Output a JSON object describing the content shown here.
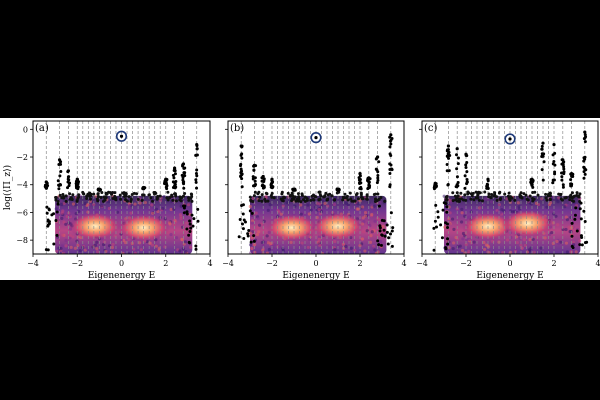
{
  "figure": {
    "background": "#ffffff",
    "page_background": "#000000"
  },
  "chart_data": [
    {
      "type": "scatter",
      "panel_label": "(a)",
      "xlabel": "Eigenenergy E",
      "ylabel": "log(⟨Π_z⟩)",
      "xlim": [
        -4,
        4
      ],
      "ylim": [
        -9,
        0.6
      ],
      "xticks": [
        "−4",
        "−2",
        "0",
        "2",
        "4"
      ],
      "yticks": [
        "0",
        "−2",
        "−4",
        "−6",
        "−8"
      ],
      "dense_region": {
        "x_range": [
          -3.0,
          3.2
        ],
        "y_range": [
          -9,
          -4.8
        ],
        "hot_centers": [
          [
            -1.2,
            -7.0
          ],
          [
            1.0,
            -7.1
          ]
        ]
      },
      "highlighted_point": {
        "x": 0.0,
        "y": -0.5
      },
      "vertical_dashed_lines_x": [
        -3.4,
        -2.8,
        -2.4,
        -2.0,
        -1.75,
        -1.5,
        -1.25,
        -1.0,
        -0.75,
        -0.5,
        -0.25,
        0.0,
        0.25,
        0.5,
        0.75,
        1.0,
        1.25,
        1.5,
        1.75,
        2.0,
        2.4,
        2.8,
        3.4
      ],
      "outlier_columns": [
        {
          "x": -3.4,
          "y_top": -3.8
        },
        {
          "x": -2.8,
          "y_top": -2.2
        },
        {
          "x": -2.4,
          "y_top": -3.0
        },
        {
          "x": -2.0,
          "y_top": -3.6
        },
        {
          "x": -1.0,
          "y_top": -4.4
        },
        {
          "x": 1.0,
          "y_top": -4.2
        },
        {
          "x": 2.0,
          "y_top": -3.6
        },
        {
          "x": 2.4,
          "y_top": -2.8
        },
        {
          "x": 2.8,
          "y_top": -2.5
        },
        {
          "x": 3.4,
          "y_top": -1.1
        }
      ]
    },
    {
      "type": "scatter",
      "panel_label": "(b)",
      "xlabel": "Eigenenergy E",
      "ylabel": "",
      "xlim": [
        -4,
        4
      ],
      "ylim": [
        -9,
        0.6
      ],
      "xticks": [
        "−4",
        "−2",
        "0",
        "2",
        "4"
      ],
      "dense_region": {
        "x_range": [
          -3.0,
          3.2
        ],
        "y_range": [
          -9,
          -4.8
        ],
        "hot_centers": [
          [
            -1.1,
            -7.1
          ],
          [
            1.0,
            -7.0
          ]
        ]
      },
      "highlighted_point": {
        "x": 0.0,
        "y": -0.6
      },
      "vertical_dashed_lines_x": [
        -3.4,
        -2.8,
        -2.4,
        -2.0,
        -1.75,
        -1.5,
        -1.25,
        -1.0,
        -0.75,
        -0.5,
        -0.25,
        0.0,
        0.25,
        0.5,
        0.75,
        1.0,
        1.25,
        1.5,
        1.75,
        2.0,
        2.4,
        2.8,
        3.4
      ],
      "outlier_columns": [
        {
          "x": -3.4,
          "y_top": -1.2
        },
        {
          "x": -2.8,
          "y_top": -2.6
        },
        {
          "x": -2.4,
          "y_top": -3.4
        },
        {
          "x": -2.0,
          "y_top": -3.6
        },
        {
          "x": -1.0,
          "y_top": -4.4
        },
        {
          "x": 1.0,
          "y_top": -4.4
        },
        {
          "x": 2.0,
          "y_top": -3.2
        },
        {
          "x": 2.4,
          "y_top": -3.5
        },
        {
          "x": 2.8,
          "y_top": -2.0
        },
        {
          "x": 3.4,
          "y_top": -0.4
        }
      ]
    },
    {
      "type": "scatter",
      "panel_label": "(c)",
      "xlabel": "Eigenenergy E",
      "ylabel": "",
      "xlim": [
        -4,
        4
      ],
      "ylim": [
        -9,
        0.6
      ],
      "xticks": [
        "−4",
        "−2",
        "0",
        "2",
        "4"
      ],
      "dense_region": {
        "x_range": [
          -3.0,
          3.2
        ],
        "y_range": [
          -9,
          -4.8
        ],
        "hot_centers": [
          [
            -1.0,
            -7.0
          ],
          [
            0.8,
            -6.8
          ]
        ]
      },
      "highlighted_point": {
        "x": 0.0,
        "y": -0.7
      },
      "vertical_dashed_lines_x": [
        -3.4,
        -2.8,
        -2.4,
        -2.0,
        -1.75,
        -1.5,
        -1.25,
        -1.0,
        -0.75,
        -0.5,
        -0.25,
        0.0,
        0.25,
        0.5,
        0.75,
        1.0,
        1.25,
        1.5,
        1.75,
        2.0,
        2.4,
        2.8,
        3.4
      ],
      "outlier_columns": [
        {
          "x": -3.4,
          "y_top": -3.9
        },
        {
          "x": -2.8,
          "y_top": -1.2
        },
        {
          "x": -2.4,
          "y_top": -1.4
        },
        {
          "x": -2.0,
          "y_top": -1.8
        },
        {
          "x": -1.0,
          "y_top": -3.6
        },
        {
          "x": 1.0,
          "y_top": -3.6
        },
        {
          "x": 1.5,
          "y_top": -1.0
        },
        {
          "x": 2.0,
          "y_top": -1.1
        },
        {
          "x": 2.4,
          "y_top": -2.2
        },
        {
          "x": 2.8,
          "y_top": -3.2
        },
        {
          "x": 3.4,
          "y_top": -0.2
        }
      ]
    }
  ]
}
